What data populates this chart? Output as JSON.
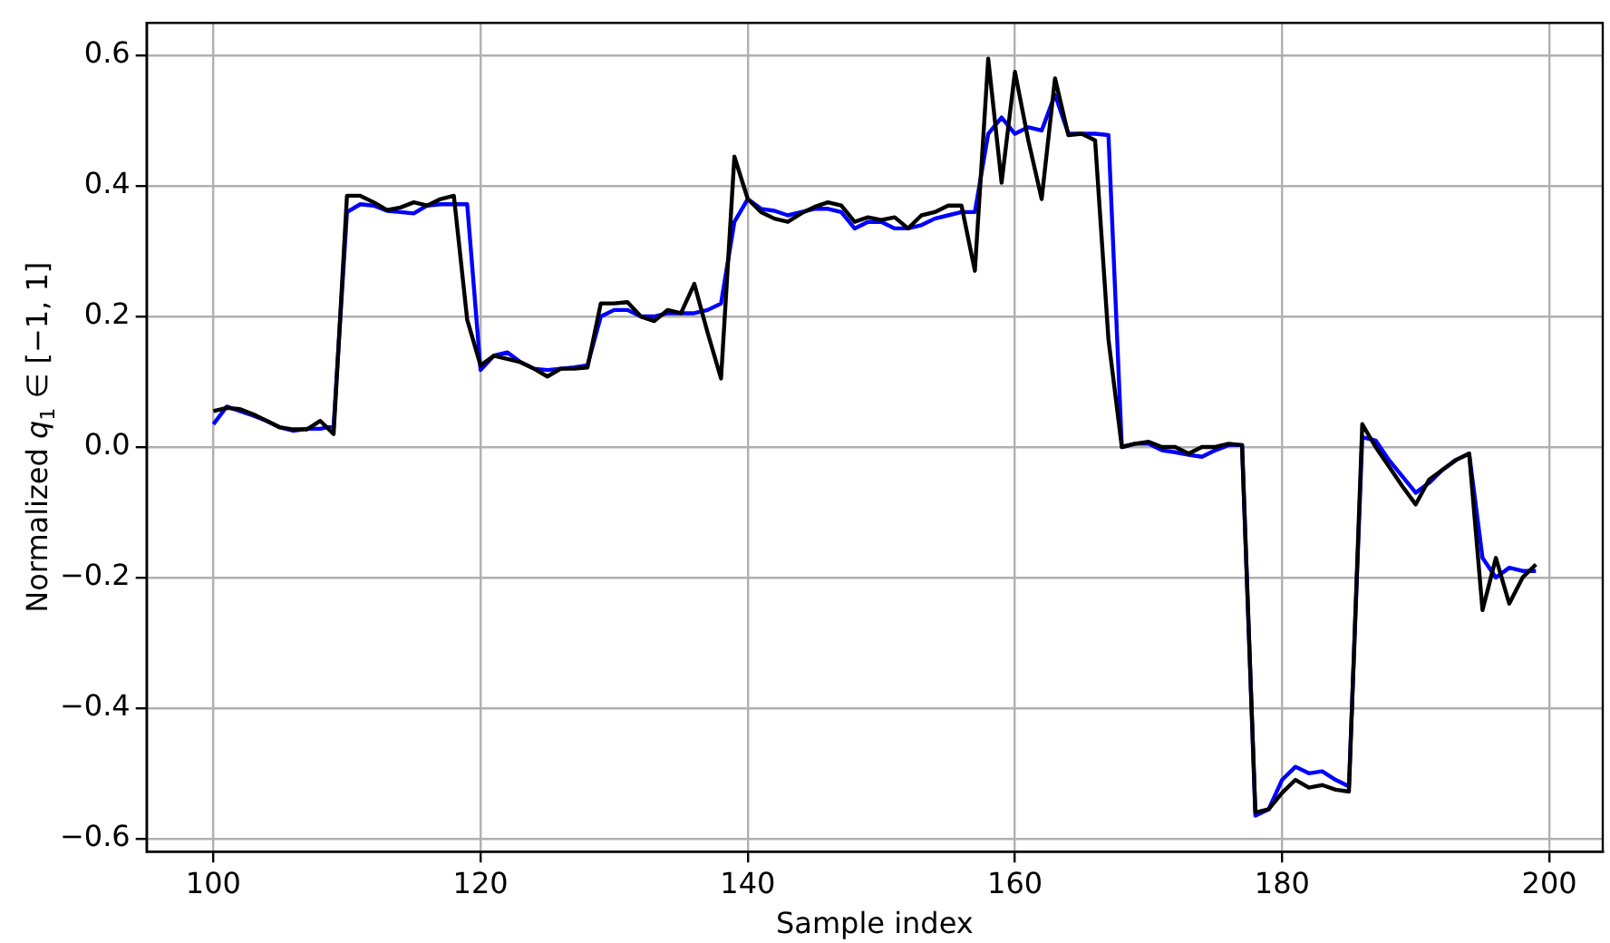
{
  "chart_data": {
    "type": "line",
    "xlabel": "Sample index",
    "ylabel": "Normalized q$_{1}$ ∈ [−1, 1]",
    "x": [
      100,
      101,
      102,
      103,
      104,
      105,
      106,
      107,
      108,
      109,
      110,
      111,
      112,
      113,
      114,
      115,
      116,
      117,
      118,
      119,
      120,
      121,
      122,
      123,
      124,
      125,
      126,
      127,
      128,
      129,
      130,
      131,
      132,
      133,
      134,
      135,
      136,
      137,
      138,
      139,
      140,
      141,
      142,
      143,
      144,
      145,
      146,
      147,
      148,
      149,
      150,
      151,
      152,
      153,
      154,
      155,
      156,
      157,
      158,
      159,
      160,
      161,
      162,
      163,
      164,
      165,
      166,
      167,
      168,
      169,
      170,
      171,
      172,
      173,
      174,
      175,
      176,
      177,
      178,
      179,
      180,
      181,
      182,
      183,
      184,
      185,
      186,
      187,
      188,
      189,
      190,
      191,
      192,
      193,
      194,
      195,
      196,
      197,
      198,
      199
    ],
    "series": [
      {
        "color": "#0000ff",
        "values": [
          0.035,
          0.062,
          0.055,
          0.048,
          0.04,
          0.03,
          0.025,
          0.028,
          0.028,
          0.032,
          0.36,
          0.372,
          0.37,
          0.362,
          0.36,
          0.358,
          0.37,
          0.372,
          0.372,
          0.372,
          0.118,
          0.14,
          0.145,
          0.13,
          0.12,
          0.118,
          0.12,
          0.122,
          0.125,
          0.2,
          0.21,
          0.21,
          0.2,
          0.2,
          0.205,
          0.205,
          0.205,
          0.21,
          0.22,
          0.345,
          0.38,
          0.365,
          0.362,
          0.355,
          0.36,
          0.365,
          0.365,
          0.36,
          0.335,
          0.345,
          0.345,
          0.335,
          0.335,
          0.34,
          0.35,
          0.355,
          0.36,
          0.36,
          0.48,
          0.505,
          0.48,
          0.49,
          0.485,
          0.54,
          0.48,
          0.48,
          0.48,
          0.478,
          0.0,
          0.005,
          0.005,
          -0.005,
          -0.008,
          -0.012,
          -0.015,
          -0.005,
          0.003,
          0.003,
          -0.565,
          -0.555,
          -0.51,
          -0.49,
          -0.5,
          -0.497,
          -0.51,
          -0.52,
          0.015,
          0.01,
          -0.02,
          -0.045,
          -0.07,
          -0.055,
          -0.035,
          -0.02,
          -0.01,
          -0.17,
          -0.2,
          -0.185,
          -0.19,
          -0.19
        ]
      },
      {
        "color": "#000000",
        "values": [
          0.055,
          0.06,
          0.058,
          0.05,
          0.04,
          0.03,
          0.027,
          0.027,
          0.04,
          0.02,
          0.385,
          0.385,
          0.375,
          0.363,
          0.367,
          0.375,
          0.37,
          0.38,
          0.385,
          0.195,
          0.125,
          0.14,
          0.135,
          0.13,
          0.12,
          0.108,
          0.12,
          0.12,
          0.122,
          0.22,
          0.22,
          0.222,
          0.2,
          0.193,
          0.21,
          0.205,
          0.25,
          0.175,
          0.105,
          0.445,
          0.38,
          0.36,
          0.35,
          0.345,
          0.358,
          0.368,
          0.375,
          0.37,
          0.345,
          0.352,
          0.348,
          0.352,
          0.335,
          0.355,
          0.36,
          0.37,
          0.37,
          0.27,
          0.595,
          0.405,
          0.575,
          0.47,
          0.38,
          0.565,
          0.478,
          0.48,
          0.47,
          0.165,
          0.0,
          0.005,
          0.008,
          0.0,
          0.0,
          -0.01,
          0.0,
          0.0,
          0.005,
          0.003,
          -0.56,
          -0.555,
          -0.53,
          -0.51,
          -0.522,
          -0.518,
          -0.525,
          -0.528,
          0.035,
          0.0,
          -0.03,
          -0.06,
          -0.088,
          -0.05,
          -0.035,
          -0.02,
          -0.01,
          -0.25,
          -0.17,
          -0.24,
          -0.2,
          -0.18
        ]
      }
    ],
    "xlim": [
      95,
      204
    ],
    "xticks": [
      100,
      120,
      140,
      160,
      180,
      200
    ],
    "ylim": [
      -0.62,
      0.65
    ],
    "yticks": [
      {
        "value": -0.6,
        "label": "−0.6"
      },
      {
        "value": -0.4,
        "label": "−0.4"
      },
      {
        "value": -0.2,
        "label": "−0.2"
      },
      {
        "value": 0,
        "label": "0.0"
      },
      {
        "value": 0.2,
        "label": "0.2"
      },
      {
        "value": 0.4,
        "label": "0.4"
      },
      {
        "value": 0.6,
        "label": "0.6"
      }
    ],
    "grid": true,
    "legend": false,
    "marker": "none",
    "line_style": "solid"
  }
}
